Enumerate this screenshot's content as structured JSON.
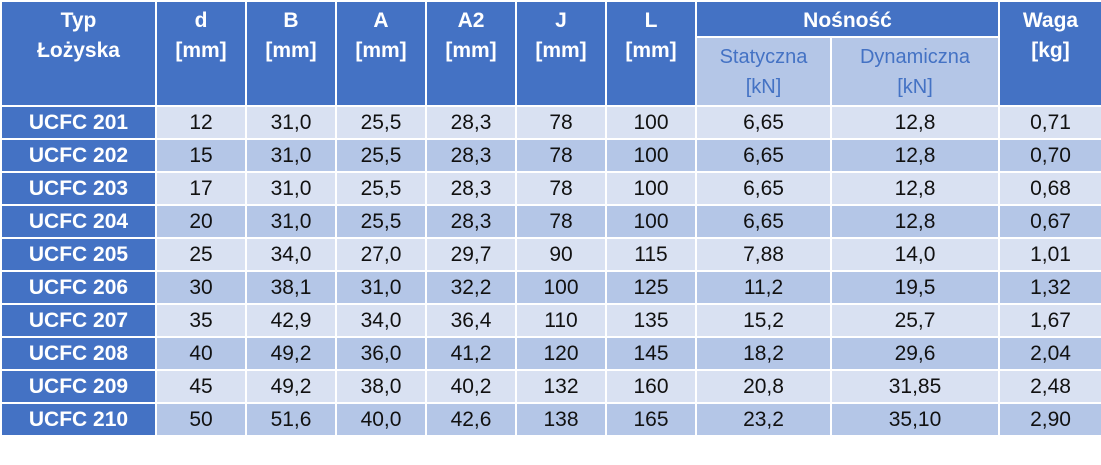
{
  "table": {
    "header": {
      "typ": "Typ\nŁożyska",
      "d": "d\n[mm]",
      "b": "B\n[mm]",
      "a": "A\n[mm]",
      "a2": "A2\n[mm]",
      "j": "J\n[mm]",
      "l": "L\n[mm]",
      "nosnosc": "Nośność",
      "statyczna": "Statyczna\n[kN]",
      "dynamiczna": "Dynamiczna\n[kN]",
      "waga": "Waga\n[kg]"
    },
    "rows": [
      [
        "UCFC 201",
        "12",
        "31,0",
        "25,5",
        "28,3",
        "78",
        "100",
        "6,65",
        "12,8",
        "0,71"
      ],
      [
        "UCFC 202",
        "15",
        "31,0",
        "25,5",
        "28,3",
        "78",
        "100",
        "6,65",
        "12,8",
        "0,70"
      ],
      [
        "UCFC 203",
        "17",
        "31,0",
        "25,5",
        "28,3",
        "78",
        "100",
        "6,65",
        "12,8",
        "0,68"
      ],
      [
        "UCFC 204",
        "20",
        "31,0",
        "25,5",
        "28,3",
        "78",
        "100",
        "6,65",
        "12,8",
        "0,67"
      ],
      [
        "UCFC 205",
        "25",
        "34,0",
        "27,0",
        "29,7",
        "90",
        "115",
        "7,88",
        "14,0",
        "1,01"
      ],
      [
        "UCFC 206",
        "30",
        "38,1",
        "31,0",
        "32,2",
        "100",
        "125",
        "11,2",
        "19,5",
        "1,32"
      ],
      [
        "UCFC 207",
        "35",
        "42,9",
        "34,0",
        "36,4",
        "110",
        "135",
        "15,2",
        "25,7",
        "1,67"
      ],
      [
        "UCFC 208",
        "40",
        "49,2",
        "36,0",
        "41,2",
        "120",
        "145",
        "18,2",
        "29,6",
        "2,04"
      ],
      [
        "UCFC 209",
        "45",
        "49,2",
        "38,0",
        "40,2",
        "132",
        "160",
        "20,8",
        "31,85",
        "2,48"
      ],
      [
        "UCFC 210",
        "50",
        "51,6",
        "40,0",
        "42,6",
        "138",
        "165",
        "23,2",
        "35,10",
        "2,90"
      ]
    ]
  }
}
